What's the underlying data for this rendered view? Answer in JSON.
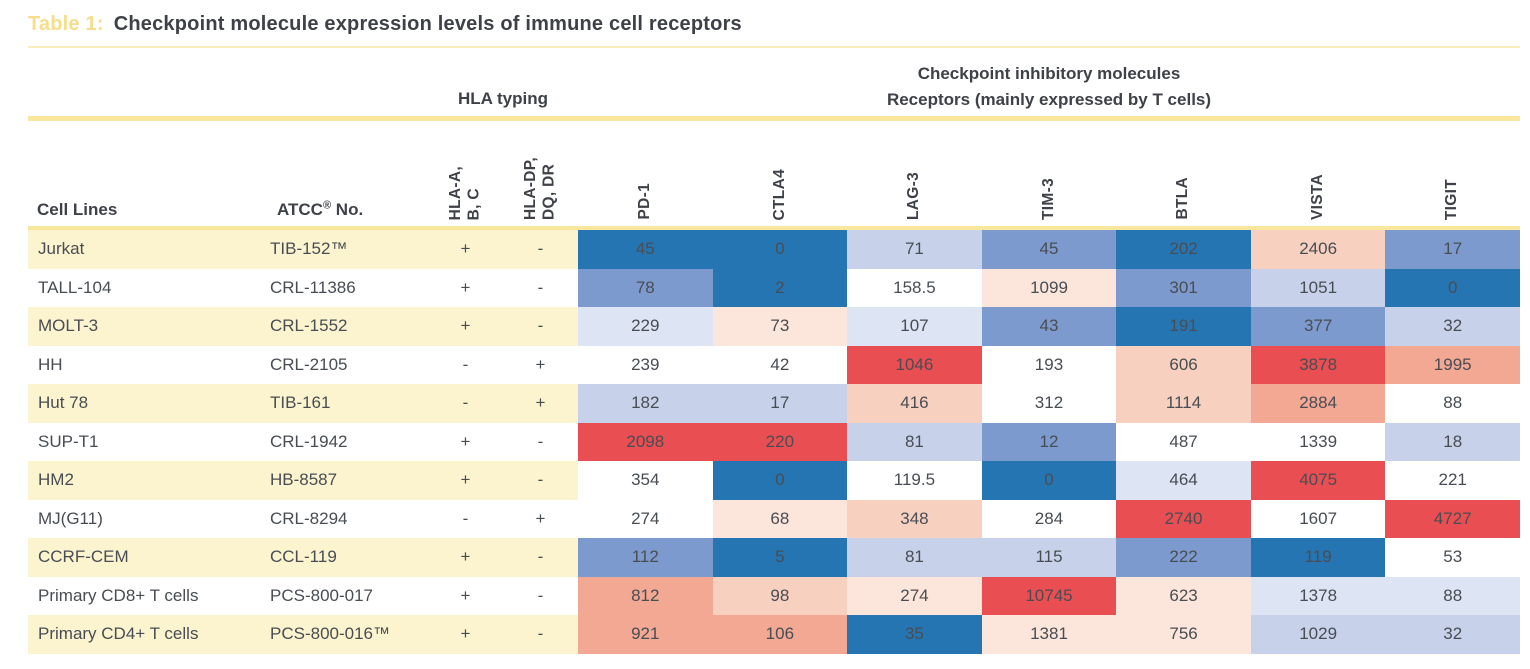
{
  "title": {
    "label": "Table 1:",
    "text": "Checkpoint molecule expression levels of immune cell receptors"
  },
  "groups": {
    "hla": "HLA typing",
    "checkpoint_line1": "Checkpoint inhibitory molecules",
    "checkpoint_line2": "Receptors (mainly expressed by T cells)"
  },
  "columns": {
    "cell_lines": "Cell Lines",
    "atcc": "ATCC",
    "atcc_reg": "®",
    "atcc_no": " No.",
    "hla_class1": "HLA-A,\nB, C",
    "hla_class2": "HLA-DP,\nDQ, DR",
    "receptors": [
      "PD-1",
      "CTLA4",
      "LAG-3",
      "TIM-3",
      "BTLA",
      "VISTA",
      "TIGIT"
    ]
  },
  "palette": {
    "b4": "#2675b3",
    "b3": "#7d9ace",
    "b2": "#c7d2ea",
    "b1": "#dde4f3",
    "w": "#ffffff",
    "r1": "#fce5da",
    "r2": "#f8d0c0",
    "r3": "#f3a893",
    "r4": "#e84e52"
  },
  "theme": {
    "accent_rule_yellow": "#f8e79d",
    "title_rule_yellow": "#faeebc",
    "row_stripe_yellow": "#fcf3cf",
    "title_label_yellow": "#f8dd8a",
    "heading_text": "#3e4147",
    "cell_text": "#484d53"
  },
  "rows": [
    {
      "cell_line": "Jurkat",
      "atcc": "TIB-152™",
      "hla1": "+",
      "hla2": "-",
      "striped": true,
      "values": [
        {
          "v": 45,
          "c": "b4"
        },
        {
          "v": 0,
          "c": "b4"
        },
        {
          "v": 71,
          "c": "b2"
        },
        {
          "v": 45,
          "c": "b3"
        },
        {
          "v": 202,
          "c": "b4"
        },
        {
          "v": 2406,
          "c": "r2"
        },
        {
          "v": 17,
          "c": "b3"
        }
      ]
    },
    {
      "cell_line": "TALL-104",
      "atcc": "CRL-11386",
      "hla1": "+",
      "hla2": "-",
      "striped": false,
      "values": [
        {
          "v": 78,
          "c": "b3"
        },
        {
          "v": 2,
          "c": "b4"
        },
        {
          "v": 158.5,
          "c": "w"
        },
        {
          "v": 1099,
          "c": "r1"
        },
        {
          "v": 301,
          "c": "b3"
        },
        {
          "v": 1051,
          "c": "b2"
        },
        {
          "v": 0,
          "c": "b4"
        }
      ]
    },
    {
      "cell_line": "MOLT-3",
      "atcc": "CRL-1552",
      "hla1": "+",
      "hla2": "-",
      "striped": true,
      "values": [
        {
          "v": 229,
          "c": "b1"
        },
        {
          "v": 73,
          "c": "r1"
        },
        {
          "v": 107,
          "c": "b1"
        },
        {
          "v": 43,
          "c": "b3"
        },
        {
          "v": 191,
          "c": "b4"
        },
        {
          "v": 377,
          "c": "b3"
        },
        {
          "v": 32,
          "c": "b2"
        }
      ]
    },
    {
      "cell_line": "HH",
      "atcc": "CRL-2105",
      "hla1": "-",
      "hla2": "+",
      "striped": false,
      "values": [
        {
          "v": 239,
          "c": "w"
        },
        {
          "v": 42,
          "c": "w"
        },
        {
          "v": 1046,
          "c": "r4"
        },
        {
          "v": 193,
          "c": "w"
        },
        {
          "v": 606,
          "c": "r2"
        },
        {
          "v": 3878,
          "c": "r4"
        },
        {
          "v": 1995,
          "c": "r3"
        }
      ]
    },
    {
      "cell_line": "Hut 78",
      "atcc": "TIB-161",
      "hla1": "-",
      "hla2": "+",
      "striped": true,
      "values": [
        {
          "v": 182,
          "c": "b2"
        },
        {
          "v": 17,
          "c": "b2"
        },
        {
          "v": 416,
          "c": "r2"
        },
        {
          "v": 312,
          "c": "w"
        },
        {
          "v": 1114,
          "c": "r2"
        },
        {
          "v": 2884,
          "c": "r3"
        },
        {
          "v": 88,
          "c": "w"
        }
      ]
    },
    {
      "cell_line": "SUP-T1",
      "atcc": "CRL-1942",
      "hla1": "+",
      "hla2": "-",
      "striped": false,
      "values": [
        {
          "v": 2098,
          "c": "r4"
        },
        {
          "v": 220,
          "c": "r4"
        },
        {
          "v": 81,
          "c": "b2"
        },
        {
          "v": 12,
          "c": "b3"
        },
        {
          "v": 487,
          "c": "w"
        },
        {
          "v": 1339,
          "c": "w"
        },
        {
          "v": 18,
          "c": "b2"
        }
      ]
    },
    {
      "cell_line": "HM2",
      "atcc": "HB-8587",
      "hla1": "+",
      "hla2": "-",
      "striped": true,
      "values": [
        {
          "v": 354,
          "c": "w"
        },
        {
          "v": 0,
          "c": "b4"
        },
        {
          "v": 119.5,
          "c": "w"
        },
        {
          "v": 0,
          "c": "b4"
        },
        {
          "v": 464,
          "c": "b1"
        },
        {
          "v": 4075,
          "c": "r4"
        },
        {
          "v": 221,
          "c": "w"
        }
      ]
    },
    {
      "cell_line": "MJ(G11)",
      "atcc": "CRL-8294",
      "hla1": "-",
      "hla2": "+",
      "striped": false,
      "values": [
        {
          "v": 274,
          "c": "w"
        },
        {
          "v": 68,
          "c": "r1"
        },
        {
          "v": 348,
          "c": "r2"
        },
        {
          "v": 284,
          "c": "w"
        },
        {
          "v": 2740,
          "c": "r4"
        },
        {
          "v": 1607,
          "c": "w"
        },
        {
          "v": 4727,
          "c": "r4"
        }
      ]
    },
    {
      "cell_line": "CCRF-CEM",
      "atcc": "CCL-119",
      "hla1": "+",
      "hla2": "-",
      "striped": true,
      "values": [
        {
          "v": 112,
          "c": "b3"
        },
        {
          "v": 5,
          "c": "b4"
        },
        {
          "v": 81,
          "c": "b2"
        },
        {
          "v": 115,
          "c": "b2"
        },
        {
          "v": 222,
          "c": "b3"
        },
        {
          "v": 119,
          "c": "b4"
        },
        {
          "v": 53,
          "c": "w"
        }
      ]
    },
    {
      "cell_line": "Primary CD8+ T cells",
      "atcc": "PCS-800-017",
      "hla1": "+",
      "hla2": "-",
      "striped": false,
      "values": [
        {
          "v": 812,
          "c": "r3"
        },
        {
          "v": 98,
          "c": "r2"
        },
        {
          "v": 274,
          "c": "r1"
        },
        {
          "v": 10745,
          "c": "r4"
        },
        {
          "v": 623,
          "c": "r1"
        },
        {
          "v": 1378,
          "c": "b1"
        },
        {
          "v": 88,
          "c": "b1"
        }
      ]
    },
    {
      "cell_line": "Primary CD4+ T cells",
      "atcc": "PCS-800-016™",
      "hla1": "+",
      "hla2": "-",
      "striped": true,
      "values": [
        {
          "v": 921,
          "c": "r3"
        },
        {
          "v": 106,
          "c": "r3"
        },
        {
          "v": 35,
          "c": "b4"
        },
        {
          "v": 1381,
          "c": "r1"
        },
        {
          "v": 756,
          "c": "r1"
        },
        {
          "v": 1029,
          "c": "b2"
        },
        {
          "v": 32,
          "c": "b2"
        }
      ]
    }
  ],
  "chart_data": {
    "type": "heatmap",
    "title": "Table 1: Checkpoint molecule expression levels of immune cell receptors",
    "x_labels": [
      "PD-1",
      "CTLA4",
      "LAG-3",
      "TIM-3",
      "BTLA",
      "VISTA",
      "TIGIT"
    ],
    "y_labels": [
      "Jurkat",
      "TALL-104",
      "MOLT-3",
      "HH",
      "Hut 78",
      "SUP-T1",
      "HM2",
      "MJ(G11)",
      "CCRF-CEM",
      "Primary CD8+ T cells",
      "Primary CD4+ T cells"
    ],
    "atcc_numbers": [
      "TIB-152™",
      "CRL-11386",
      "CRL-1552",
      "CRL-2105",
      "TIB-161",
      "CRL-1942",
      "HB-8587",
      "CRL-8294",
      "CCL-119",
      "PCS-800-017",
      "PCS-800-016™"
    ],
    "hla_typing": {
      "HLA-A, B, C": [
        "+",
        "+",
        "+",
        "-",
        "-",
        "+",
        "+",
        "-",
        "+",
        "+",
        "+"
      ],
      "HLA-DP, DQ, DR": [
        "-",
        "-",
        "-",
        "+",
        "+",
        "-",
        "-",
        "+",
        "-",
        "-",
        "-"
      ]
    },
    "values": [
      [
        45,
        0,
        71,
        45,
        202,
        2406,
        17
      ],
      [
        78,
        2,
        158.5,
        1099,
        301,
        1051,
        0
      ],
      [
        229,
        73,
        107,
        43,
        191,
        377,
        32
      ],
      [
        239,
        42,
        1046,
        193,
        606,
        3878,
        1995
      ],
      [
        182,
        17,
        416,
        312,
        1114,
        2884,
        88
      ],
      [
        2098,
        220,
        81,
        12,
        487,
        1339,
        18
      ],
      [
        354,
        0,
        119.5,
        0,
        464,
        4075,
        221
      ],
      [
        274,
        68,
        348,
        284,
        2740,
        1607,
        4727
      ],
      [
        112,
        5,
        81,
        115,
        222,
        119,
        53
      ],
      [
        812,
        98,
        274,
        10745,
        623,
        1378,
        88
      ],
      [
        921,
        106,
        35,
        1381,
        756,
        1029,
        32
      ]
    ],
    "color_scale": "blue (low expression) to red (high expression)",
    "legend_position": "none",
    "grid": false
  }
}
